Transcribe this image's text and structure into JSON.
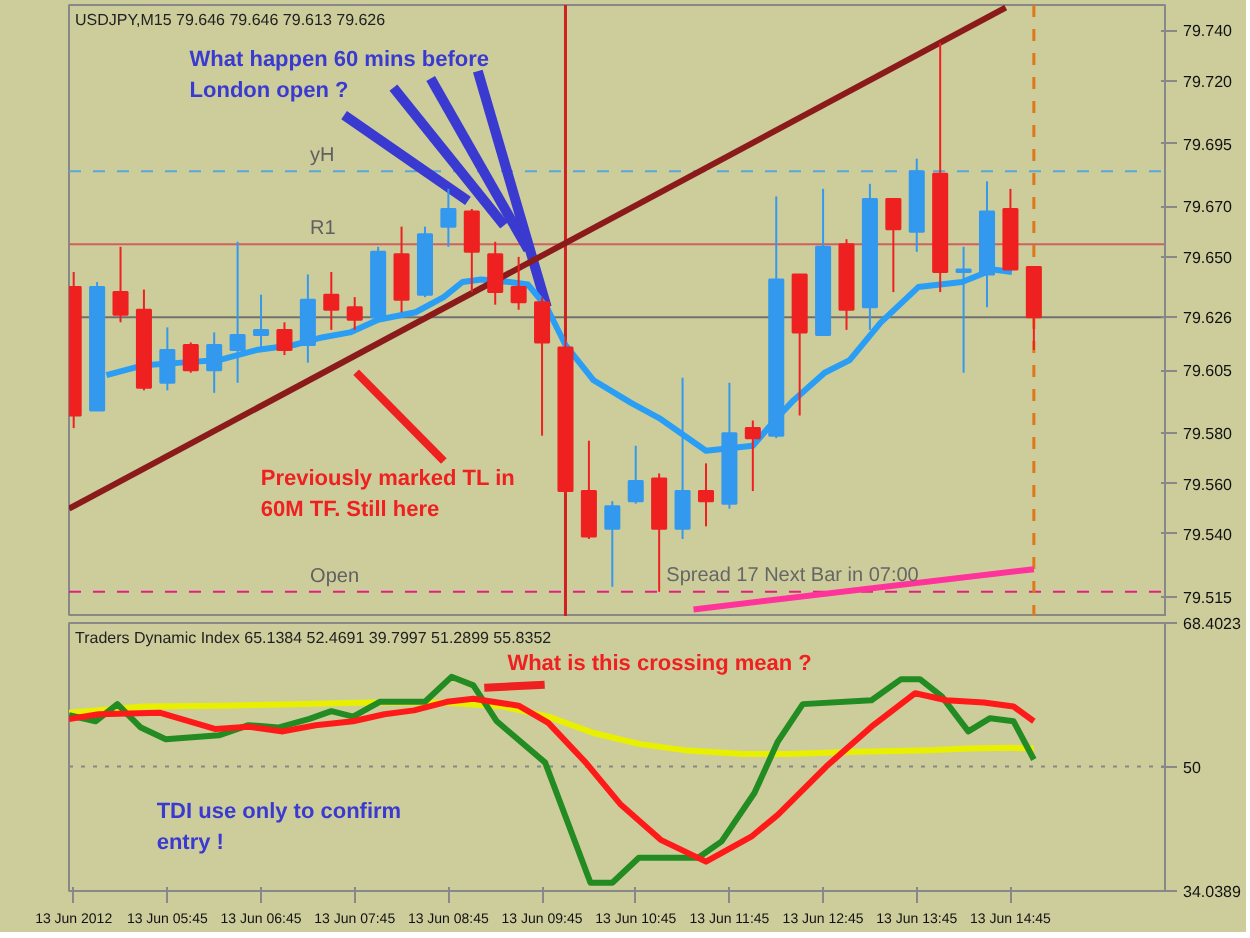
{
  "chart_data": [
    {
      "type": "candlestick",
      "title": "USDJPY,M15 79.646 79.646 79.613 79.626",
      "x": [
        "2012-06-13T04:45",
        "2012-06-13T05:00",
        "2012-06-13T05:15",
        "2012-06-13T05:30",
        "2012-06-13T05:45",
        "2012-06-13T06:00",
        "2012-06-13T06:15",
        "2012-06-13T06:30",
        "2012-06-13T06:45",
        "2012-06-13T07:00",
        "2012-06-13T07:15",
        "2012-06-13T07:30",
        "2012-06-13T07:45",
        "2012-06-13T08:00",
        "2012-06-13T08:15",
        "2012-06-13T08:30",
        "2012-06-13T08:45",
        "2012-06-13T09:00",
        "2012-06-13T09:15",
        "2012-06-13T09:30",
        "2012-06-13T09:45",
        "2012-06-13T10:00",
        "2012-06-13T10:15",
        "2012-06-13T10:30",
        "2012-06-13T10:45",
        "2012-06-13T11:00",
        "2012-06-13T11:15",
        "2012-06-13T11:30",
        "2012-06-13T11:45",
        "2012-06-13T12:00",
        "2012-06-13T12:15",
        "2012-06-13T12:30",
        "2012-06-13T12:45",
        "2012-06-13T13:00",
        "2012-06-13T13:15",
        "2012-06-13T13:30",
        "2012-06-13T13:45",
        "2012-06-13T14:00",
        "2012-06-13T14:15",
        "2012-06-13T14:30",
        "2012-06-13T14:45",
        "2012-06-13T15:00"
      ],
      "ohlc": [
        [
          79.638,
          79.644,
          79.582,
          79.587
        ],
        [
          79.589,
          79.64,
          79.589,
          79.638
        ],
        [
          79.636,
          79.654,
          79.624,
          79.627
        ],
        [
          79.629,
          79.637,
          79.597,
          79.598
        ],
        [
          79.6,
          79.622,
          79.597,
          79.613
        ],
        [
          79.615,
          79.616,
          79.604,
          79.605
        ],
        [
          79.605,
          79.62,
          79.596,
          79.615
        ],
        [
          79.613,
          79.656,
          79.6,
          79.619
        ],
        [
          79.619,
          79.635,
          79.614,
          79.621
        ],
        [
          79.621,
          79.624,
          79.611,
          79.613
        ],
        [
          79.615,
          79.643,
          79.608,
          79.633
        ],
        [
          79.635,
          79.644,
          79.621,
          79.629
        ],
        [
          79.63,
          79.634,
          79.621,
          79.625
        ],
        [
          79.626,
          79.654,
          79.625,
          79.652
        ],
        [
          79.651,
          79.662,
          79.628,
          79.633
        ],
        [
          79.635,
          79.662,
          79.634,
          79.659
        ],
        [
          79.662,
          79.677,
          79.654,
          79.669
        ],
        [
          79.668,
          79.669,
          79.636,
          79.652
        ],
        [
          79.651,
          79.656,
          79.631,
          79.636
        ],
        [
          79.638,
          79.65,
          79.629,
          79.632
        ],
        [
          79.632,
          79.634,
          79.579,
          79.616
        ],
        [
          79.614,
          79.618,
          79.556,
          79.557
        ],
        [
          79.557,
          79.577,
          79.538,
          79.539
        ],
        [
          79.542,
          79.553,
          79.519,
          79.551
        ],
        [
          79.553,
          79.575,
          79.552,
          79.561
        ],
        [
          79.562,
          79.564,
          79.517,
          79.542
        ],
        [
          79.542,
          79.602,
          79.538,
          79.557
        ],
        [
          79.557,
          79.568,
          79.543,
          79.553
        ],
        [
          79.552,
          79.6,
          79.55,
          79.58
        ],
        [
          79.582,
          79.585,
          79.557,
          79.578
        ],
        [
          79.579,
          79.674,
          79.578,
          79.641
        ],
        [
          79.643,
          79.643,
          79.587,
          79.62
        ],
        [
          79.619,
          79.677,
          79.619,
          79.654
        ],
        [
          79.655,
          79.657,
          79.621,
          79.629
        ],
        [
          79.63,
          79.679,
          79.621,
          79.673
        ],
        [
          79.673,
          79.673,
          79.636,
          79.661
        ],
        [
          79.66,
          79.689,
          79.652,
          79.684
        ],
        [
          79.683,
          79.735,
          79.636,
          79.644
        ],
        [
          79.644,
          79.654,
          79.604,
          79.645
        ],
        [
          79.643,
          79.68,
          79.63,
          79.668
        ],
        [
          79.669,
          79.677,
          79.645,
          79.645
        ],
        [
          79.646,
          79.646,
          79.613,
          79.626
        ]
      ],
      "colors": [
        "#ee2020",
        "#3399ee",
        "#ee2020",
        "#ee2020",
        "#3399ee",
        "#ee2020",
        "#3399ee",
        "#3399ee",
        "#3399ee",
        "#ee2020",
        "#3399ee",
        "#ee2020",
        "#ee2020",
        "#3399ee",
        "#ee2020",
        "#3399ee",
        "#3399ee",
        "#ee2020",
        "#ee2020",
        "#ee2020",
        "#ee2020",
        "#ee2020",
        "#ee2020",
        "#3399ee",
        "#3399ee",
        "#ee2020",
        "#3399ee",
        "#ee2020",
        "#3399ee",
        "#ee2020",
        "#3399ee",
        "#ee2020",
        "#3399ee",
        "#ee2020",
        "#3399ee",
        "#ee2020",
        "#3399ee",
        "#ee2020",
        "#3399ee",
        "#3399ee",
        "#ee2020",
        "#ee2020"
      ],
      "series": [
        {
          "type": "line",
          "color": "#2a9df4",
          "x": [
            "2012-06-13T05:06",
            "2012-06-13T05:30",
            "2012-06-13T05:54",
            "2012-06-13T06:18",
            "2012-06-13T06:42",
            "2012-06-13T07:06",
            "2012-06-13T07:24",
            "2012-06-13T07:42",
            "2012-06-13T08:00",
            "2012-06-13T08:24",
            "2012-06-13T08:42",
            "2012-06-13T08:54",
            "2012-06-13T09:06",
            "2012-06-13T09:24",
            "2012-06-13T09:36",
            "2012-06-13T09:48",
            "2012-06-13T10:00",
            "2012-06-13T10:18",
            "2012-06-13T10:42",
            "2012-06-13T11:00",
            "2012-06-13T11:30",
            "2012-06-13T12:00",
            "2012-06-13T12:14",
            "2012-06-13T12:26",
            "2012-06-13T12:46",
            "2012-06-13T13:02",
            "2012-06-13T13:22",
            "2012-06-13T13:46",
            "2012-06-13T14:14",
            "2012-06-13T14:34",
            "2012-06-13T14:46"
          ],
          "values": [
            79.603,
            79.607,
            79.608,
            79.609,
            79.613,
            79.615,
            79.618,
            79.62,
            79.625,
            79.628,
            79.634,
            79.64,
            79.641,
            79.64,
            79.639,
            79.63,
            79.615,
            79.601,
            79.592,
            79.586,
            79.573,
            79.575,
            79.585,
            79.593,
            79.604,
            79.609,
            79.624,
            79.638,
            79.64,
            79.645,
            79.644
          ]
        },
        {
          "type": "line",
          "color": "#8b1a1a",
          "x": [
            "2012-06-13T04:42",
            "2012-06-13T14:42"
          ],
          "values": [
            79.55,
            79.749
          ]
        },
        {
          "type": "line",
          "color": "#ff3399",
          "x": [
            "2012-06-13T11:22",
            "2012-06-13T15:00"
          ],
          "values": [
            79.51,
            79.526
          ]
        }
      ],
      "xlim": [
        "2012-06-13T04:42",
        "2012-06-13T16:24"
      ],
      "ylim": [
        79.507,
        79.75
      ],
      "yticks": [
        {
          "value": 79.74,
          "label": "79.740"
        },
        {
          "value": 79.72,
          "label": "79.720"
        },
        79.695,
        {
          "value": 79.67,
          "label": "79.670"
        },
        {
          "value": 79.65,
          "label": "79.650"
        },
        79.626,
        79.605,
        {
          "value": 79.58,
          "label": "79.580"
        },
        {
          "value": 79.56,
          "label": "79.560"
        },
        {
          "value": 79.54,
          "label": "79.540"
        },
        79.515
      ],
      "tick_labels": "y",
      "ref_lines": [
        {
          "axis": "y",
          "value": 79.684,
          "label": "yH",
          "color": "#5aa8d8",
          "line_style": "dashed"
        },
        {
          "axis": "y",
          "value": 79.655,
          "label": "R1",
          "color": "#d06060",
          "line_style": "solid"
        },
        {
          "axis": "y",
          "value": 79.626,
          "color": "#707070",
          "line_style": "solid"
        },
        {
          "axis": "y",
          "value": 79.517,
          "label": "Open",
          "color": "#e0207f",
          "line_style": "dashed"
        },
        {
          "axis": "x",
          "value": "2012-06-13T10:00",
          "color": "#d02020",
          "line_style": "solid"
        },
        {
          "axis": "x",
          "value": "2012-06-13T15:00",
          "color": "#e07818",
          "line_style": "dashed"
        }
      ],
      "annotations": [
        {
          "text": "What happen 60 mins before London open ?",
          "x": "2012-06-13T09:48",
          "y": 79.63
        },
        "Previously marked TL in 60M TF. Still here",
        "Spread  17  Next Bar in 07:00"
      ]
    },
    {
      "type": "line",
      "title": "Traders Dynamic Index 65.1384 52.4691 39.7997 51.2899 55.8352",
      "series": [
        {
          "color": "#e8f000",
          "x": [
            "2012-06-13T04:42",
            "2012-06-13T05:30",
            "2012-06-13T06:18",
            "2012-06-13T07:06",
            "2012-06-13T07:54",
            "2012-06-13T08:42",
            "2012-06-13T09:20",
            "2012-06-13T09:49",
            "2012-06-13T10:18",
            "2012-06-13T10:47",
            "2012-06-13T11:16",
            "2012-06-13T11:54",
            "2012-06-13T12:23",
            "2012-06-13T13:06",
            "2012-06-13T13:54",
            "2012-06-13T14:18",
            "2012-06-13T14:47",
            "2012-06-13T15:00"
          ],
          "values": [
            56.9,
            57.7,
            57.8,
            58.0,
            58.2,
            58.2,
            57.7,
            56.4,
            54.3,
            52.9,
            52.1,
            51.6,
            51.6,
            51.9,
            52.1,
            52.3,
            52.4,
            52.3
          ]
        },
        {
          "color": "#228b22",
          "x": [
            "2012-06-13T04:42",
            "2012-06-13T04:59",
            "2012-06-13T05:13",
            "2012-06-13T05:28",
            "2012-06-13T05:44",
            "2012-06-13T06:18",
            "2012-06-13T06:37",
            "2012-06-13T06:56",
            "2012-06-13T07:16",
            "2012-06-13T07:30",
            "2012-06-13T07:44",
            "2012-06-13T08:01",
            "2012-06-13T08:30",
            "2012-06-13T08:47",
            "2012-06-13T09:01",
            "2012-06-13T09:16",
            "2012-06-13T09:47",
            "2012-06-13T10:16",
            "2012-06-13T10:30",
            "2012-06-13T10:47",
            "2012-06-13T11:25",
            "2012-06-13T11:40",
            "2012-06-13T12:01",
            "2012-06-13T12:16",
            "2012-06-13T12:32",
            "2012-06-13T13:16",
            "2012-06-13T13:35",
            "2012-06-13T13:47",
            "2012-06-13T14:01",
            "2012-06-13T14:18",
            "2012-06-13T14:32",
            "2012-06-13T14:47",
            "2012-06-13T15:00"
          ],
          "values": [
            56.6,
            55.8,
            58.0,
            55.0,
            53.5,
            54.0,
            55.3,
            55.0,
            56.1,
            57.1,
            56.4,
            58.3,
            58.3,
            61.5,
            60.4,
            55.8,
            50.5,
            35.1,
            35.1,
            38.3,
            38.3,
            40.4,
            46.6,
            53.2,
            58.0,
            58.5,
            61.2,
            61.2,
            59.0,
            54.5,
            56.2,
            55.8,
            50.9
          ]
        },
        {
          "color": "#ff1a1a",
          "x": [
            "2012-06-13T04:42",
            "2012-06-13T05:01",
            "2012-06-13T05:40",
            "2012-06-13T06:16",
            "2012-06-13T06:37",
            "2012-06-13T06:59",
            "2012-06-13T07:20",
            "2012-06-13T07:44",
            "2012-06-13T08:04",
            "2012-06-13T08:23",
            "2012-06-13T08:44",
            "2012-06-13T09:01",
            "2012-06-13T09:30",
            "2012-06-13T09:49",
            "2012-06-13T10:13",
            "2012-06-13T10:35",
            "2012-06-13T11:01",
            "2012-06-13T11:30",
            "2012-06-13T11:59",
            "2012-06-13T12:16",
            "2012-06-13T12:47",
            "2012-06-13T13:16",
            "2012-06-13T13:44",
            "2012-06-13T14:04",
            "2012-06-13T14:28",
            "2012-06-13T14:47",
            "2012-06-13T15:00"
          ],
          "values": [
            56.1,
            56.7,
            56.9,
            54.8,
            55.1,
            54.5,
            55.3,
            55.8,
            56.7,
            57.2,
            58.3,
            58.7,
            57.8,
            55.6,
            50.5,
            45.2,
            40.6,
            37.8,
            41.0,
            43.8,
            50.0,
            55.1,
            59.4,
            58.5,
            58.2,
            57.7,
            55.8
          ]
        }
      ],
      "xlim": [
        "2012-06-13T04:42",
        "2012-06-13T16:24"
      ],
      "ylim": [
        34.0389,
        68.4023
      ],
      "yticks": [
        68.4023,
        50,
        34.0389
      ],
      "xticks": [
        {
          "value": "2012-06-13T04:45",
          "label": "13 Jun 2012"
        },
        {
          "value": "2012-06-13T05:45",
          "label": "13 Jun 05:45"
        },
        {
          "value": "2012-06-13T06:45",
          "label": "13 Jun 06:45"
        },
        {
          "value": "2012-06-13T07:45",
          "label": "13 Jun 07:45"
        },
        {
          "value": "2012-06-13T08:45",
          "label": "13 Jun 08:45"
        },
        {
          "value": "2012-06-13T09:45",
          "label": "13 Jun 09:45"
        },
        {
          "value": "2012-06-13T10:45",
          "label": "13 Jun 10:45"
        },
        {
          "value": "2012-06-13T11:45",
          "label": "13 Jun 11:45"
        },
        {
          "value": "2012-06-13T12:45",
          "label": "13 Jun 12:45"
        },
        {
          "value": "2012-06-13T13:45",
          "label": "13 Jun 13:45"
        },
        {
          "value": "2012-06-13T14:45",
          "label": "13 Jun 14:45"
        }
      ],
      "ref_lines": [
        {
          "axis": "y",
          "value": 50,
          "color": "#888888",
          "line_style": "dotted"
        }
      ],
      "annotations": [
        {
          "text": "What is this crossing mean ?",
          "x": "2012-06-13T09:08",
          "y": 60.1
        },
        "TDI use only to confirm entry !"
      ]
    }
  ]
}
